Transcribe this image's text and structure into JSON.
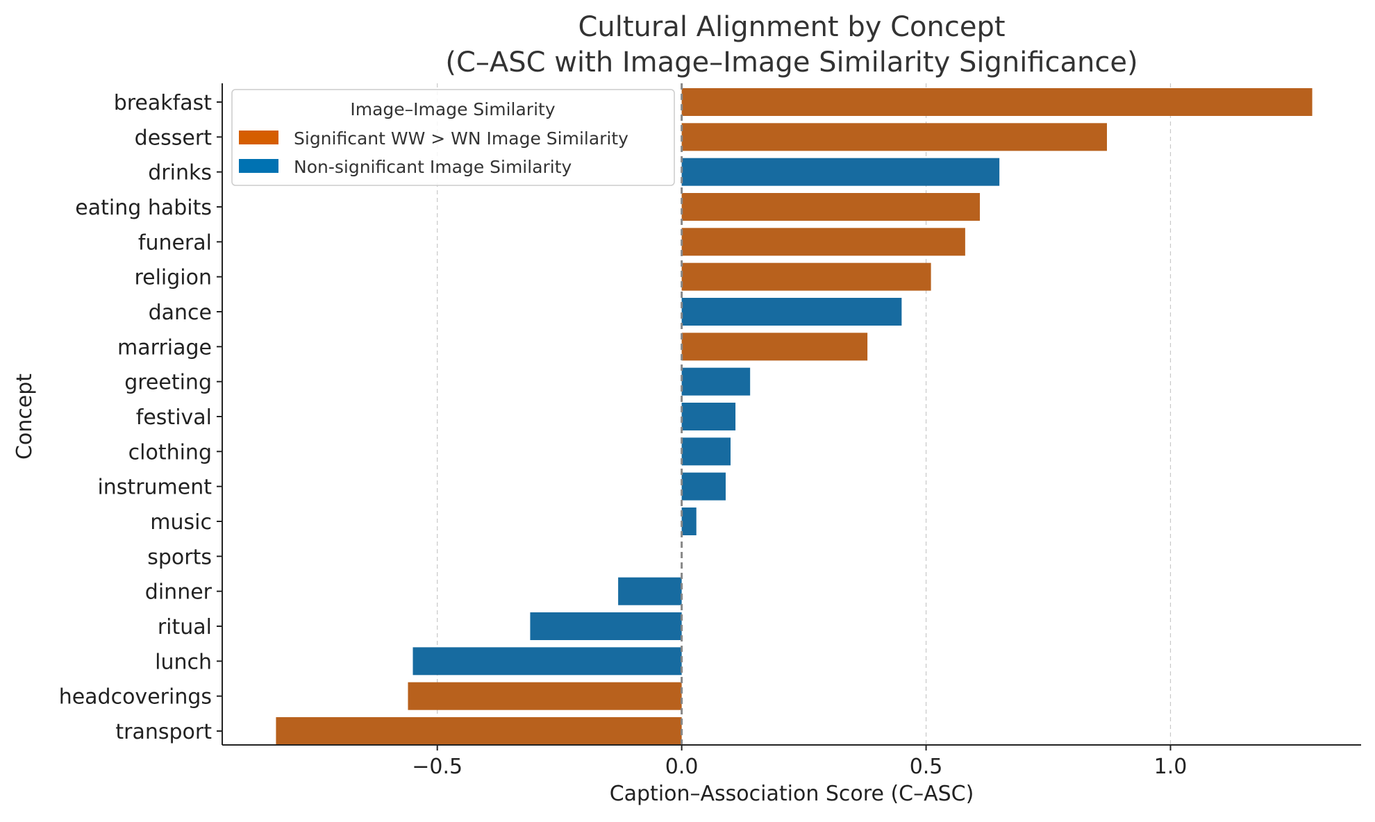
{
  "chart_data": {
    "type": "bar",
    "orientation": "horizontal",
    "title_lines": [
      "Cultural Alignment by Concept",
      "(C–ASC with Image–Image Similarity Significance)"
    ],
    "xlabel": "Caption–Association Score (C–ASC)",
    "ylabel": "Concept",
    "xlim": [
      -0.94,
      1.39
    ],
    "xticks": [
      -0.5,
      0.0,
      0.5,
      1.0
    ],
    "xtick_labels": [
      "−0.5",
      "0.0",
      "0.5",
      "1.0"
    ],
    "grid": "vertical dashed",
    "zero_line": "dashed",
    "legend": {
      "position": "top-left",
      "title": "Image–Image Similarity",
      "entries": [
        {
          "label": "Significant WW > WN Image Similarity",
          "color": "#d55e00",
          "key": "sig"
        },
        {
          "label": "Non-significant Image Similarity",
          "color": "#0072b2",
          "key": "nonsig"
        }
      ]
    },
    "bar_colors": {
      "sig": "#b8611d",
      "nonsig": "#176ba0"
    },
    "categories": [
      "breakfast",
      "dessert",
      "drinks",
      "eating habits",
      "funeral",
      "religion",
      "dance",
      "marriage",
      "greeting",
      "festival",
      "clothing",
      "instrument",
      "music",
      "sports",
      "dinner",
      "ritual",
      "lunch",
      "headcoverings",
      "transport"
    ],
    "values": [
      1.29,
      0.87,
      0.65,
      0.61,
      0.58,
      0.51,
      0.45,
      0.38,
      0.14,
      0.11,
      0.1,
      0.09,
      0.03,
      0.0,
      -0.13,
      -0.31,
      -0.55,
      -0.56,
      -0.83
    ],
    "significance": [
      "sig",
      "sig",
      "nonsig",
      "sig",
      "sig",
      "sig",
      "nonsig",
      "sig",
      "nonsig",
      "nonsig",
      "nonsig",
      "nonsig",
      "nonsig",
      "nonsig",
      "nonsig",
      "nonsig",
      "nonsig",
      "sig",
      "sig"
    ]
  }
}
